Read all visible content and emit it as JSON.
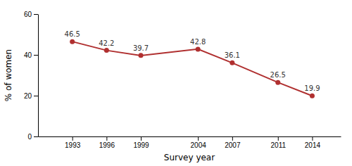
{
  "chart_data": {
    "type": "line",
    "x": [
      1993,
      1996,
      1999,
      2004,
      2007,
      2011,
      2014
    ],
    "values": [
      46.5,
      42.2,
      39.7,
      42.8,
      36.1,
      26.5,
      19.9
    ],
    "color": "#b03030",
    "marker": "circle",
    "data_labels": true,
    "xlabel": "Survey year",
    "ylabel": "% of women",
    "xlim": [
      1990,
      2016.5
    ],
    "xticks": [
      1993,
      1996,
      1999,
      2004,
      2007,
      2011,
      2014
    ],
    "ylim": [
      0,
      60
    ],
    "yticks": [
      0,
      20,
      40,
      60
    ],
    "grid": false
  }
}
